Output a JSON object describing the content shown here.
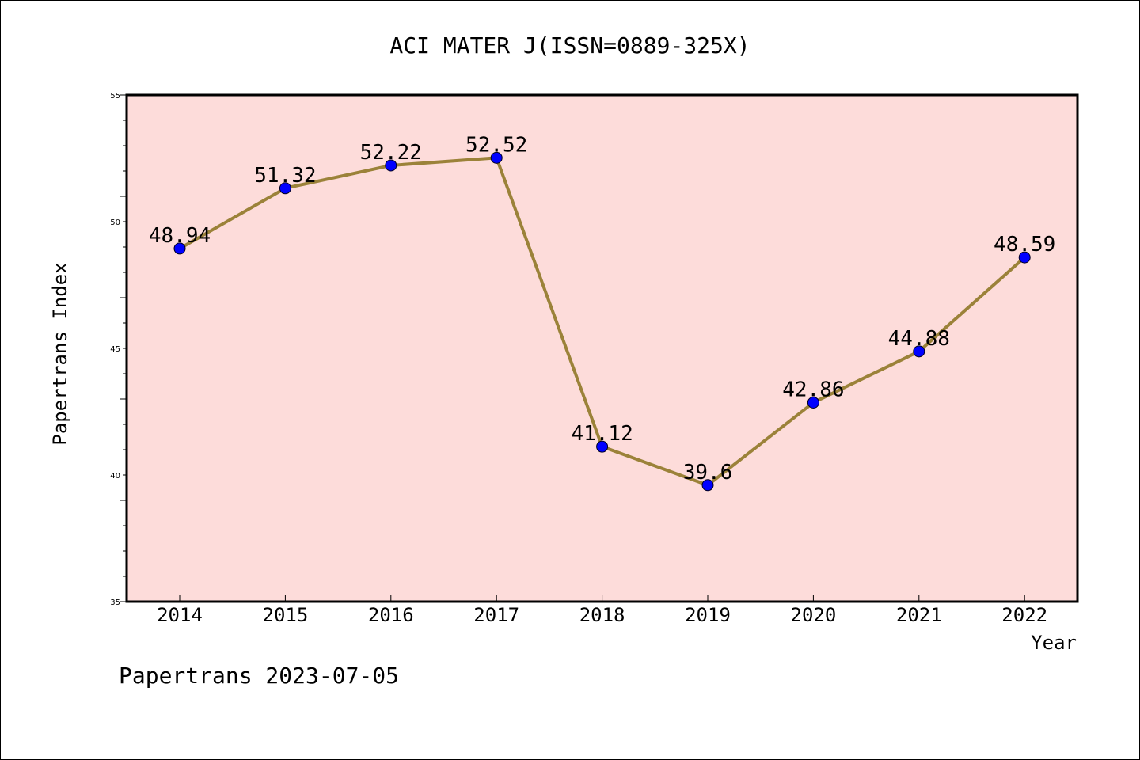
{
  "chart_data": {
    "type": "line",
    "title": "ACI MATER J(ISSN=0889-325X)",
    "xlabel": "Year",
    "ylabel": "Papertrans Index",
    "footer": "Papertrans 2023-07-05",
    "categories": [
      "2014",
      "2015",
      "2016",
      "2017",
      "2018",
      "2019",
      "2020",
      "2021",
      "2022"
    ],
    "series": [
      {
        "values": [
          48.94,
          51.32,
          52.22,
          52.52,
          41.12,
          39.6,
          42.86,
          44.88,
          48.59
        ],
        "labels": [
          "48.94",
          "51.32",
          "52.22",
          "52.52",
          "41.12",
          "39.6",
          "42.86",
          "44.88",
          "48.59"
        ],
        "line_color": "#9b8239",
        "marker_color": "#0000ff"
      }
    ],
    "ylim": [
      35,
      55
    ],
    "yticks": [
      35,
      40,
      45,
      50,
      55
    ],
    "ytick_labels": [
      "35",
      "40",
      "45",
      "50",
      "55"
    ],
    "grid": false,
    "legend": "none",
    "plot_background": "#fddcda"
  }
}
